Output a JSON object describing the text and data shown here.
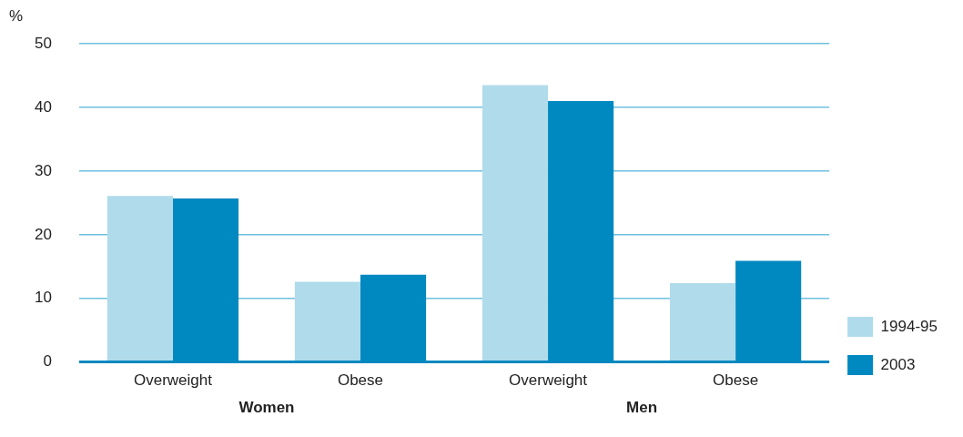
{
  "chart_data": {
    "type": "bar",
    "ylabel": "%",
    "categories": [
      "Overweight",
      "Obese",
      "Overweight",
      "Obese"
    ],
    "series": [
      {
        "name": "1994-95",
        "color": "#b0dbea",
        "values": [
          26.1,
          12.6,
          43.5,
          12.4
        ]
      },
      {
        "name": "2003",
        "color": "#0088c0",
        "values": [
          25.7,
          13.7,
          41.0,
          15.9
        ]
      }
    ],
    "ylim": [
      0,
      50
    ],
    "yticks": [
      0,
      10,
      20,
      30,
      40,
      50
    ],
    "grid": "y",
    "legend": "right",
    "annotations": [
      "Women",
      "Men"
    ]
  }
}
